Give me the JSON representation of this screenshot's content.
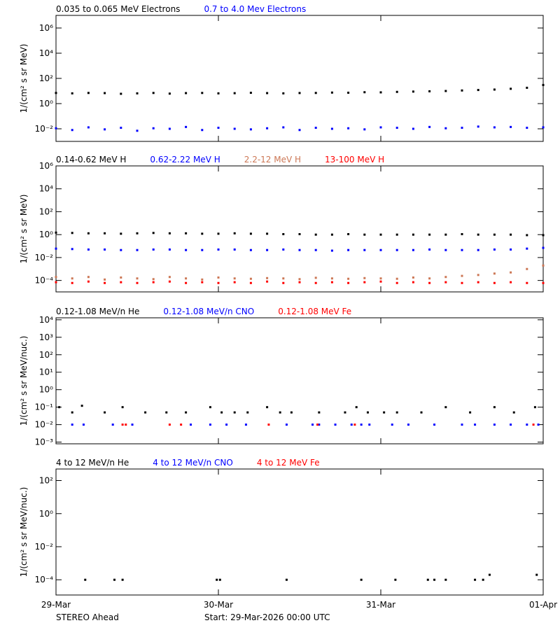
{
  "chart_data": [
    {
      "type": "scatter",
      "ylog": true,
      "ylabel": "1/(cm² s sr MeV)",
      "xlim": [
        0,
        3
      ],
      "ylim": [
        0.001,
        10000000
      ],
      "yticks": [
        {
          "value": 0.01,
          "label": "10⁻²"
        },
        {
          "value": 1,
          "label": "10⁰"
        },
        {
          "value": 100,
          "label": "10²"
        },
        {
          "value": 10000,
          "label": "10⁴"
        },
        {
          "value": 1000000,
          "label": "10⁶"
        }
      ],
      "x": [
        0,
        0.1,
        0.2,
        0.3,
        0.4,
        0.5,
        0.6,
        0.7,
        0.8,
        0.9,
        1,
        1.1,
        1.2,
        1.3,
        1.4,
        1.5,
        1.6,
        1.7,
        1.8,
        1.9,
        2,
        2.1,
        2.2,
        2.3,
        2.4,
        2.5,
        2.6,
        2.7,
        2.8,
        2.9,
        3
      ],
      "series": [
        {
          "name": "0.035 to 0.065 MeV Electrons",
          "color": "#000000",
          "values": [
            7,
            6.5,
            7,
            6.8,
            6,
            6.5,
            7,
            6.2,
            6.8,
            7,
            6.5,
            6.7,
            7.2,
            6.8,
            6.5,
            6.9,
            7,
            7.5,
            7.3,
            8,
            7.8,
            8.5,
            9,
            9.5,
            10,
            11,
            12,
            13,
            15,
            18,
            30
          ]
        },
        {
          "name": "0.7 to 4.0 Mev Electrons",
          "color": "#0000ff",
          "values": [
            0.011,
            0.008,
            0.013,
            0.009,
            0.012,
            0.007,
            0.011,
            0.01,
            0.014,
            0.008,
            0.012,
            0.01,
            0.009,
            0.011,
            0.013,
            0.008,
            0.012,
            0.01,
            0.011,
            0.009,
            0.013,
            0.012,
            0.01,
            0.014,
            0.011,
            0.012,
            0.015,
            0.013,
            0.014,
            0.012,
            0.013
          ]
        }
      ]
    },
    {
      "type": "scatter",
      "ylog": true,
      "ylabel": "1/(cm² s sr MeV)",
      "xlim": [
        0,
        3
      ],
      "ylim": [
        1e-05,
        1000000
      ],
      "yticks": [
        {
          "value": 0.0001,
          "label": "10⁻⁴"
        },
        {
          "value": 0.01,
          "label": "10⁻²"
        },
        {
          "value": 1,
          "label": "10⁰"
        },
        {
          "value": 100,
          "label": "10²"
        },
        {
          "value": 10000,
          "label": "10⁴"
        },
        {
          "value": 1000000,
          "label": "10⁶"
        }
      ],
      "x": [
        0,
        0.1,
        0.2,
        0.3,
        0.4,
        0.5,
        0.6,
        0.7,
        0.8,
        0.9,
        1,
        1.1,
        1.2,
        1.3,
        1.4,
        1.5,
        1.6,
        1.7,
        1.8,
        1.9,
        2,
        2.1,
        2.2,
        2.3,
        2.4,
        2.5,
        2.6,
        2.7,
        2.8,
        2.9,
        3
      ],
      "series": [
        {
          "name": "0.14-0.62 MeV H",
          "color": "#000000",
          "values": [
            1.5,
            1.4,
            1.3,
            1.3,
            1.2,
            1.3,
            1.4,
            1.3,
            1.3,
            1.2,
            1.2,
            1.3,
            1.2,
            1.2,
            1.1,
            1.1,
            1,
            1,
            1.1,
            1,
            1,
            1,
            1,
            1,
            1,
            1.1,
            1,
            1,
            1,
            0.9,
            0.9
          ]
        },
        {
          "name": "0.62-2.22 MeV H",
          "color": "#0000ff",
          "values": [
            0.06,
            0.055,
            0.05,
            0.05,
            0.045,
            0.045,
            0.05,
            0.05,
            0.045,
            0.045,
            0.05,
            0.05,
            0.045,
            0.045,
            0.05,
            0.045,
            0.045,
            0.04,
            0.045,
            0.045,
            0.045,
            0.045,
            0.045,
            0.05,
            0.045,
            0.045,
            0.045,
            0.05,
            0.05,
            0.06,
            0.07
          ]
        },
        {
          "name": "2.2-12 MeV H",
          "color": "#cc7755",
          "values": [
            0.0002,
            0.00015,
            0.0002,
            0.00012,
            0.00018,
            0.00015,
            0.00013,
            0.0002,
            0.00015,
            0.00012,
            0.00018,
            0.00015,
            0.00014,
            0.00016,
            0.00015,
            0.00013,
            0.00017,
            0.00015,
            0.00014,
            0.00016,
            0.00015,
            0.00014,
            0.00018,
            0.00015,
            0.0002,
            0.00025,
            0.0003,
            0.0004,
            0.0005,
            0.001,
            0.002
          ]
        },
        {
          "name": "13-100 MeV H",
          "color": "#ff0000",
          "values": [
            7e-05,
            6e-05,
            8e-05,
            6e-05,
            7e-05,
            6e-05,
            7e-05,
            8e-05,
            6e-05,
            7e-05,
            6e-05,
            7e-05,
            6e-05,
            8e-05,
            6e-05,
            7e-05,
            6e-05,
            7e-05,
            6e-05,
            7e-05,
            8e-05,
            6e-05,
            7e-05,
            6e-05,
            7e-05,
            6e-05,
            7e-05,
            6e-05,
            7e-05,
            6e-05,
            6e-05
          ]
        }
      ]
    },
    {
      "type": "scatter",
      "ylog": true,
      "ylabel": "1/(cm² s sr MeV/nuc.)",
      "xlim": [
        0,
        3
      ],
      "ylim": [
        0.0008,
        13000
      ],
      "yticks": [
        {
          "value": 0.001,
          "label": "10⁻³"
        },
        {
          "value": 0.01,
          "label": "10⁻²"
        },
        {
          "value": 0.1,
          "label": "10⁻¹"
        },
        {
          "value": 1,
          "label": "10⁰"
        },
        {
          "value": 10,
          "label": "10¹"
        },
        {
          "value": 100,
          "label": "10²"
        },
        {
          "value": 1000,
          "label": "10³"
        },
        {
          "value": 10000,
          "label": "10⁴"
        }
      ],
      "series": [
        {
          "name": "0.12-1.08 MeV/n He",
          "color": "#000000",
          "x": [
            0.02,
            0.1,
            0.16,
            0.3,
            0.41,
            0.55,
            0.68,
            0.8,
            0.95,
            1.02,
            1.1,
            1.18,
            1.3,
            1.38,
            1.45,
            1.62,
            1.78,
            1.85,
            1.92,
            2.02,
            2.1,
            2.25,
            2.4,
            2.55,
            2.7,
            2.82,
            2.95
          ],
          "values": [
            0.1,
            0.05,
            0.12,
            0.05,
            0.1,
            0.05,
            0.05,
            0.05,
            0.1,
            0.05,
            0.05,
            0.05,
            0.1,
            0.05,
            0.05,
            0.05,
            0.05,
            0.1,
            0.05,
            0.05,
            0.05,
            0.05,
            0.1,
            0.05,
            0.1,
            0.05,
            0.1
          ]
        },
        {
          "name": "0.12-1.08 MeV/n CNO",
          "color": "#0000ff",
          "x": [
            0.1,
            0.17,
            0.35,
            0.47,
            0.83,
            0.95,
            1.05,
            1.17,
            1.42,
            1.58,
            1.62,
            1.72,
            1.82,
            1.88,
            1.93,
            2.07,
            2.17,
            2.33,
            2.5,
            2.58,
            2.7,
            2.8,
            2.9,
            2.97
          ],
          "values": [
            0.01,
            0.01,
            0.01,
            0.01,
            0.01,
            0.01,
            0.01,
            0.01,
            0.01,
            0.01,
            0.01,
            0.01,
            0.01,
            0.01,
            0.01,
            0.01,
            0.01,
            0.01,
            0.01,
            0.01,
            0.01,
            0.01,
            0.01,
            0.01
          ]
        },
        {
          "name": "0.12-1.08 MeV Fe",
          "color": "#ff0000",
          "x": [
            0.41,
            0.43,
            0.7,
            0.77,
            1.31,
            1.61,
            1.84,
            2.94
          ],
          "values": [
            0.01,
            0.01,
            0.01,
            0.01,
            0.01,
            0.01,
            0.01,
            0.01
          ]
        }
      ]
    },
    {
      "type": "scatter",
      "ylog": true,
      "ylabel": "1/(cm² s sr MeV/nuc.)",
      "xlim": [
        0,
        3
      ],
      "ylim": [
        1.2e-05,
        500
      ],
      "yticks": [
        {
          "value": 0.0001,
          "label": "10⁻⁴"
        },
        {
          "value": 0.01,
          "label": "10⁻²"
        },
        {
          "value": 1,
          "label": "10⁰"
        },
        {
          "value": 100,
          "label": "10²"
        }
      ],
      "xticks": [
        {
          "value": 0,
          "label": "29-Mar"
        },
        {
          "value": 1,
          "label": "30-Mar"
        },
        {
          "value": 2,
          "label": "31-Mar"
        },
        {
          "value": 3,
          "label": "01-Apr"
        }
      ],
      "series": [
        {
          "name": "4 to 12 MeV/n He",
          "color": "#000000",
          "x": [
            0.18,
            0.36,
            0.41,
            0.99,
            1.01,
            1.42,
            1.88,
            2.09,
            2.29,
            2.33,
            2.4,
            2.58,
            2.63,
            2.67,
            2.96
          ],
          "values": [
            0.0001,
            0.0001,
            0.0001,
            0.0001,
            0.0001,
            0.0001,
            0.0001,
            0.0001,
            0.0001,
            0.0001,
            0.0001,
            0.0001,
            0.0001,
            0.0002,
            0.0002
          ]
        },
        {
          "name": "4 to 12 MeV/n CNO",
          "color": "#0000ff",
          "x": [],
          "values": []
        },
        {
          "name": "4 to 12 MeV Fe",
          "color": "#ff0000",
          "x": [],
          "values": []
        }
      ]
    }
  ],
  "footer": {
    "left": "STEREO Ahead",
    "center": "Start: 29-Mar-2026 00:00 UTC"
  }
}
